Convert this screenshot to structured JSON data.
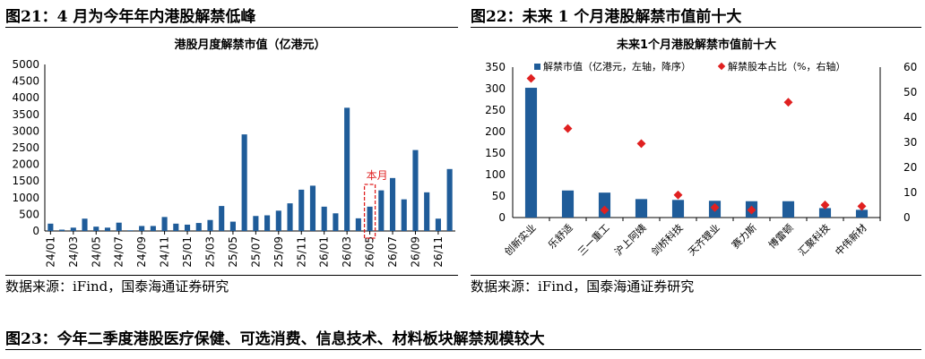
{
  "fig21": {
    "title": "图21：4 月为今年年内港股解禁低峰",
    "source": "数据来源：iFind，国泰海通证券研究"
  },
  "fig22": {
    "title": "图22：未来 1 个月港股解禁市值前十大",
    "source": "数据来源：iFind，国泰海通证券研究"
  },
  "fig23": {
    "title": "图23：今年二季度港股医疗保健、可选消费、信息技术、材料板块解禁规模较大"
  },
  "colors": {
    "bar": "#1F5C99",
    "marker": "#E02020",
    "highlight": "#E02020"
  },
  "chart_data": [
    {
      "type": "bar",
      "title": "港股月度解禁市值（亿港元）",
      "annotation": "本月",
      "annotation_index": 28,
      "categories": [
        "24/01",
        "24/02",
        "24/03",
        "24/04",
        "24/05",
        "24/06",
        "24/07",
        "24/08",
        "24/09",
        "24/10",
        "24/11",
        "24/12",
        "25/01",
        "25/02",
        "25/03",
        "25/04",
        "25/05",
        "25/06",
        "25/07",
        "25/08",
        "25/09",
        "25/10",
        "25/11",
        "25/12",
        "26/01",
        "26/02",
        "26/03",
        "26/04",
        "26/05",
        "26/06",
        "26/07",
        "26/08",
        "26/09",
        "26/10",
        "26/11",
        "26/12"
      ],
      "tick_labels": [
        "24/01",
        "24/03",
        "24/05",
        "24/07",
        "24/09",
        "24/11",
        "25/01",
        "25/03",
        "25/05",
        "25/07",
        "25/09",
        "25/11",
        "26/01",
        "26/03",
        "26/05",
        "26/07",
        "26/09",
        "26/11"
      ],
      "values": [
        220,
        40,
        100,
        370,
        130,
        100,
        250,
        20,
        150,
        150,
        420,
        220,
        190,
        240,
        330,
        750,
        280,
        2900,
        450,
        470,
        610,
        830,
        1240,
        1360,
        730,
        530,
        3700,
        380,
        730,
        1220,
        1590,
        950,
        2430,
        1160,
        370,
        1860
      ],
      "ylim": [
        0,
        5000
      ],
      "yticks": [
        0,
        500,
        1000,
        1500,
        2000,
        2500,
        3000,
        3500,
        4000,
        4500,
        5000
      ]
    },
    {
      "type": "bar+scatter",
      "title": "未来1个月港股解禁市值前十大",
      "categories": [
        "创新实业",
        "乐舒适",
        "三一重工",
        "沪上阿姨",
        "剑桥科技",
        "天齐锂业",
        "赛力斯",
        "博雷顿",
        "汇聚科技",
        "中伟新材"
      ],
      "series": [
        {
          "name": "解禁市值（亿港元，左轴，降序）",
          "kind": "bar",
          "axis": "left",
          "values": [
            302,
            63,
            58,
            43,
            41,
            39,
            38,
            38,
            22,
            18
          ]
        },
        {
          "name": "解禁股本占比（%，右轴）",
          "kind": "scatter",
          "axis": "right",
          "values": [
            55.5,
            35.5,
            3.0,
            29.5,
            9.0,
            4.0,
            3.0,
            46.0,
            5.0,
            4.5
          ]
        }
      ],
      "ylim_left": [
        0,
        350
      ],
      "yticks_left": [
        0,
        50,
        100,
        150,
        200,
        250,
        300,
        350
      ],
      "ylim_right": [
        0,
        60
      ],
      "yticks_right": [
        0,
        10,
        20,
        30,
        40,
        50,
        60
      ],
      "legend_position": "top"
    }
  ]
}
